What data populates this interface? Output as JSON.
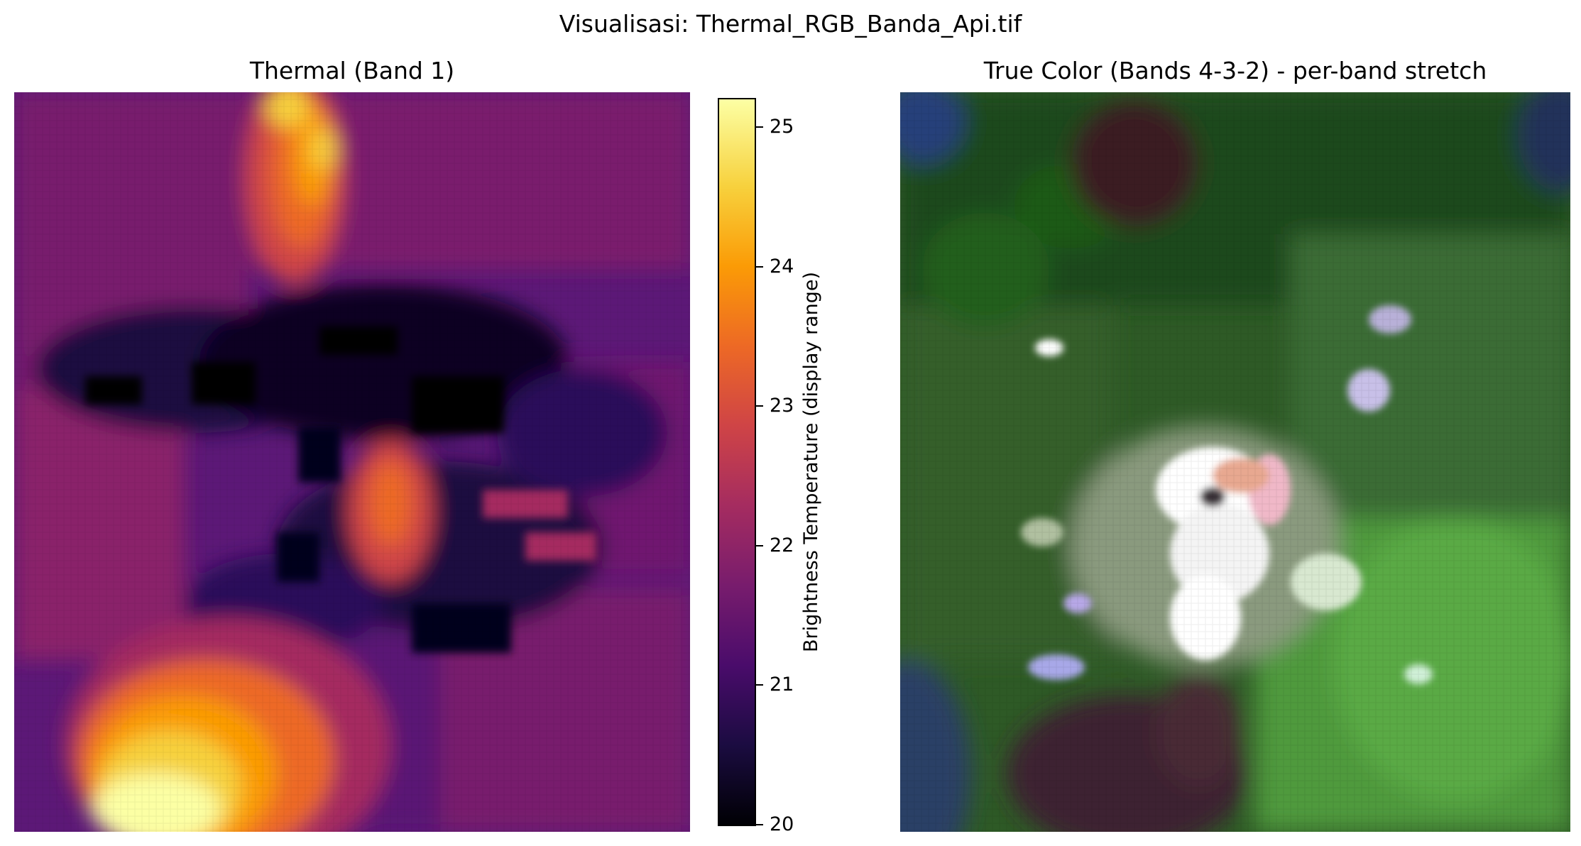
{
  "figure": {
    "suptitle": "Visualisasi: Thermal_RGB_Banda_Api.tif"
  },
  "thermal_panel": {
    "title": "Thermal (Band 1)",
    "colormap": [
      "#000004",
      "#1b0c41",
      "#4a0c6b",
      "#781c6d",
      "#a52c60",
      "#cf4446",
      "#ed6925",
      "#fb9b06",
      "#f7d13d",
      "#fcffa4"
    ],
    "colorbar": {
      "label": "Brightness Temperature (display range)",
      "range": [
        20,
        25.2
      ],
      "ticks": [
        "20",
        "21",
        "22",
        "23",
        "24",
        "25"
      ]
    }
  },
  "rgb_panel": {
    "title": "True Color (Bands 4-3-2) - per-band stretch"
  }
}
